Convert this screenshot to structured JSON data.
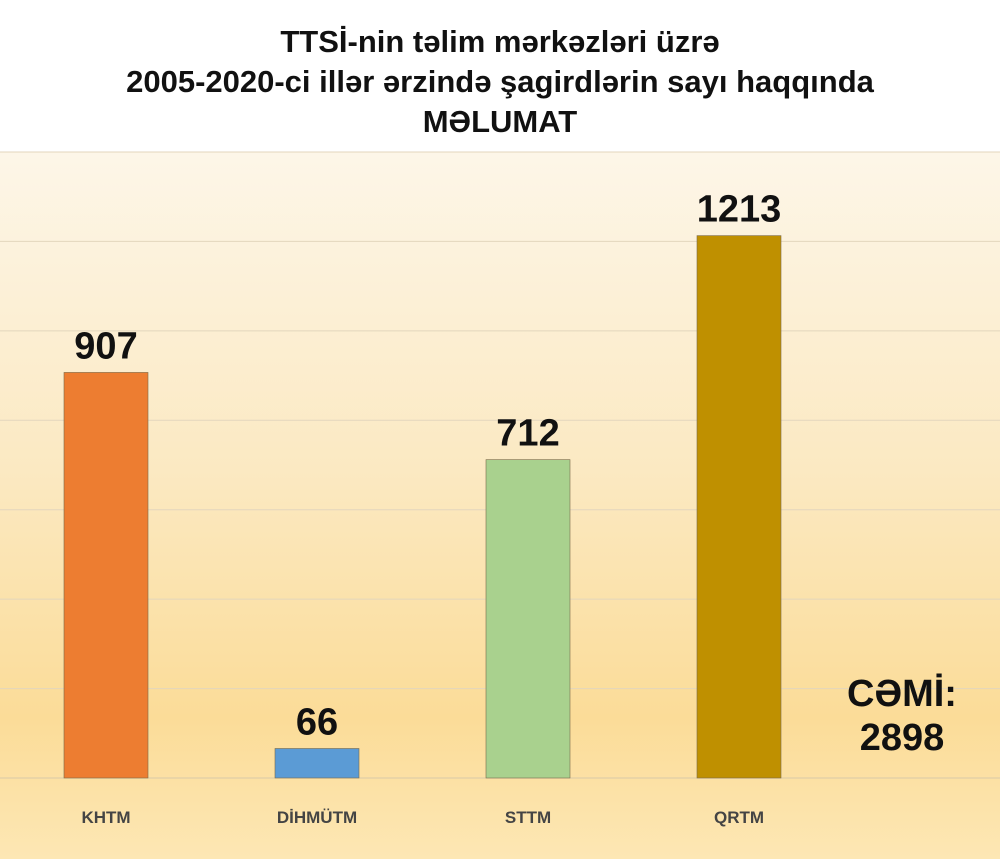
{
  "chart_data": {
    "type": "bar",
    "title_lines": [
      "TTSİ-nin  təlim mərkəzləri  üzrə",
      "2005-2020-ci  illər  ərzində  şagirdlərin  sayı  haqqında",
      "MƏLUMAT"
    ],
    "categories": [
      "KHTM",
      "DİHMÜTM",
      "STTM",
      "QRTM"
    ],
    "values": [
      907,
      66,
      712,
      1213
    ],
    "colors": [
      "#ed7d31",
      "#5b9bd5",
      "#a9d18e",
      "#bf9000"
    ],
    "ylim": [
      0,
      1400
    ],
    "grid": true,
    "xlabel": "",
    "ylabel": "",
    "total": {
      "label": "CƏMİ:",
      "value": "2898"
    }
  }
}
